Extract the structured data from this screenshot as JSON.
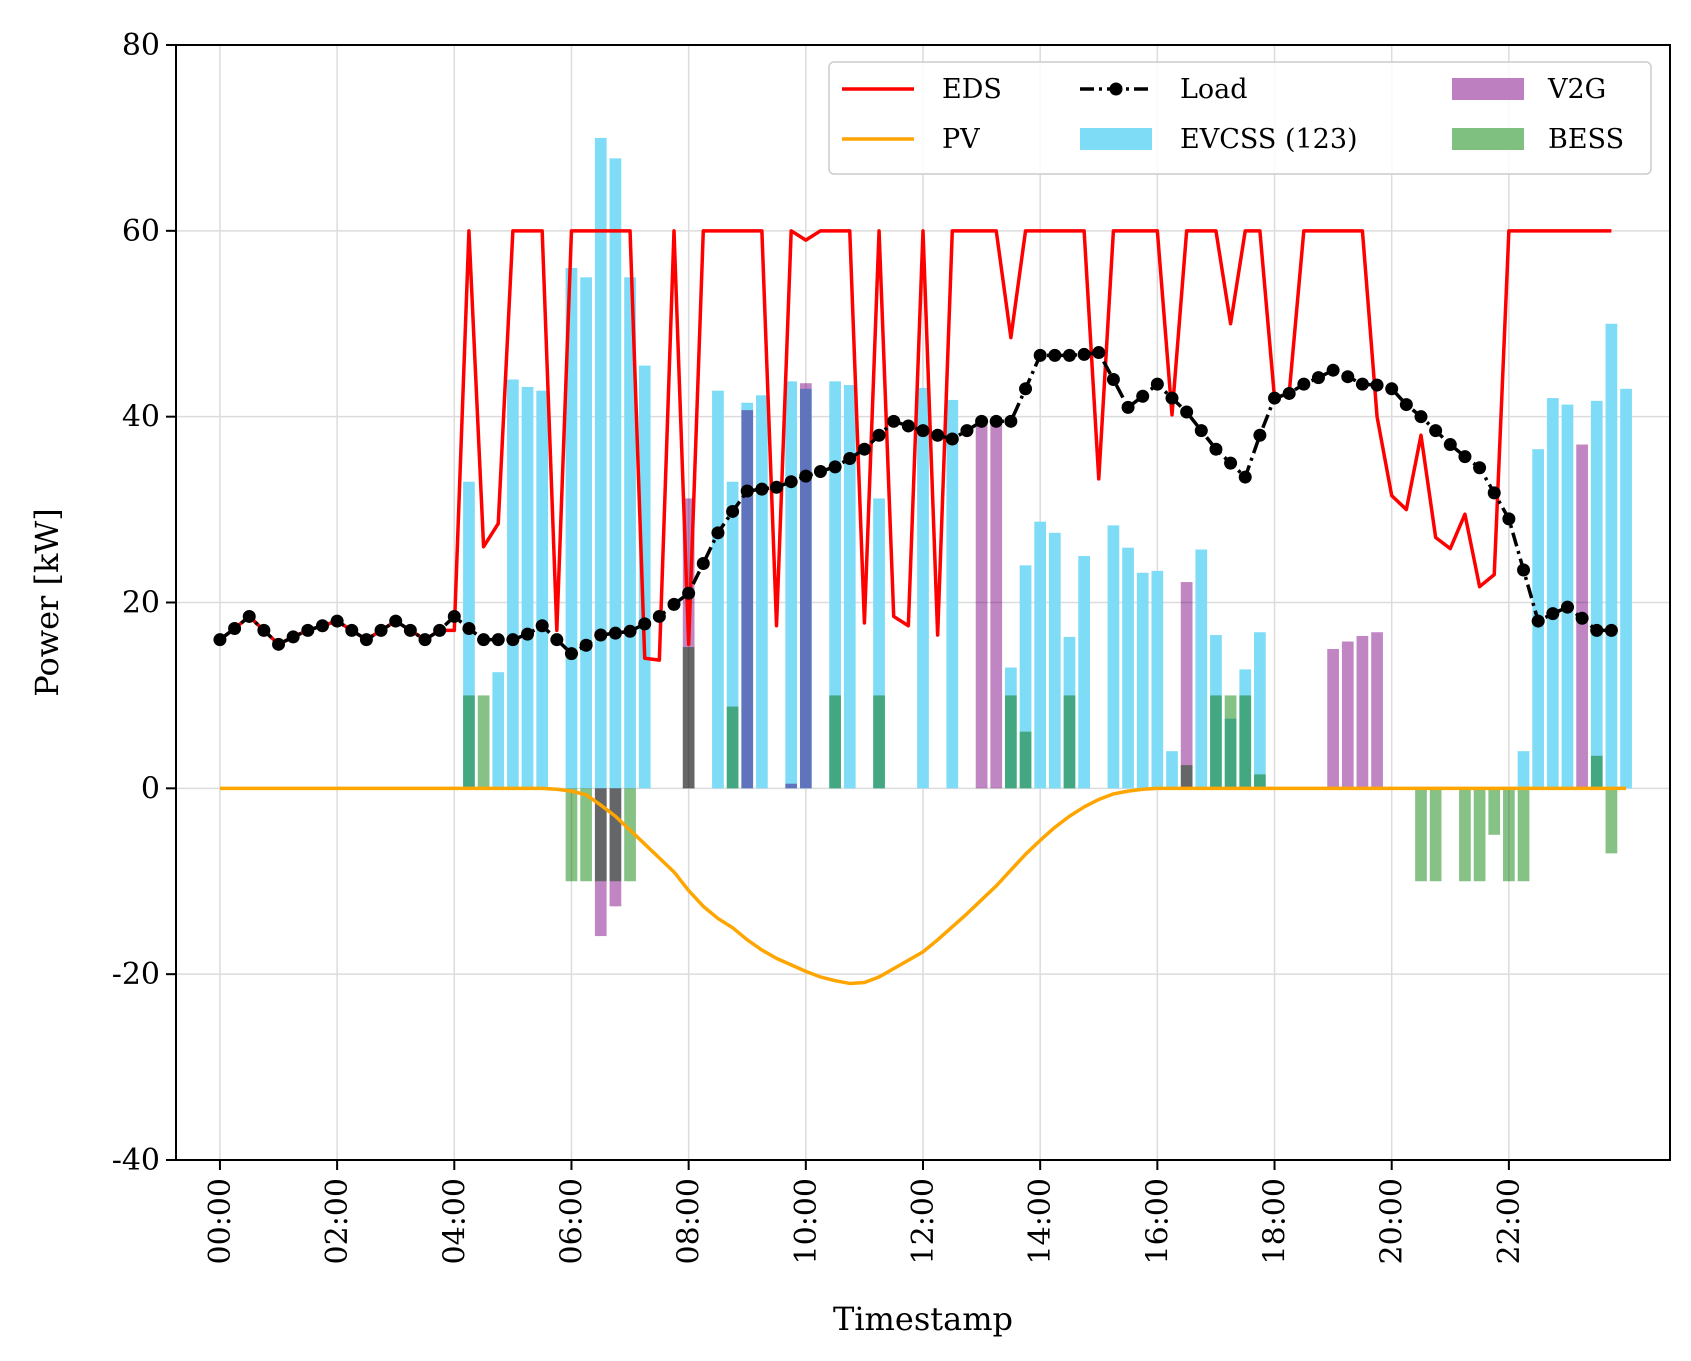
{
  "chart_data": {
    "type": "bar",
    "xlabel": "Timestamp",
    "ylabel": "Power [kW]",
    "ylim": [
      -40,
      80
    ],
    "xlim_hours": [
      -0.75,
      24.75
    ],
    "grid": true,
    "legend_placement": "top-right",
    "y_ticks": [
      "80",
      "60",
      "40",
      "20",
      "0",
      "-20",
      "-40"
    ],
    "y_tick_values": [
      80,
      60,
      40,
      20,
      0,
      -20,
      -40
    ],
    "x_ticks": [
      "00:00",
      "02:00",
      "04:00",
      "06:00",
      "08:00",
      "10:00",
      "12:00",
      "14:00",
      "16:00",
      "18:00",
      "20:00",
      "22:00"
    ],
    "x_tick_hours": [
      0,
      2,
      4,
      6,
      8,
      10,
      12,
      14,
      16,
      18,
      20,
      22
    ],
    "step_hours": 0.25,
    "colors": {
      "EDS": "#ff0000",
      "PV": "#ffa500",
      "Load": "#000000",
      "EVCSS": "#7fdcf7",
      "V2G": "#bd7fc0",
      "BESS": "#7fbf7f"
    },
    "legend": [
      {
        "label": "EDS",
        "kind": "line",
        "key": "EDS"
      },
      {
        "label": "PV",
        "kind": "line",
        "key": "PV"
      },
      {
        "label": "Load",
        "kind": "line-marker",
        "key": "Load"
      },
      {
        "label": "EVCSS (123)",
        "kind": "patch",
        "key": "EVCSS"
      },
      {
        "label": "V2G",
        "kind": "patch",
        "key": "V2G"
      },
      {
        "label": "BESS",
        "kind": "patch",
        "key": "BESS"
      }
    ],
    "series": [
      {
        "name": "EDS",
        "type": "line",
        "values": [
          16,
          17.2,
          18.5,
          17,
          15.5,
          16.3,
          17,
          17.5,
          18,
          17,
          16,
          17,
          18,
          17,
          16,
          17,
          17,
          60,
          26,
          28.5,
          60,
          60,
          60,
          17,
          60,
          60,
          60,
          60,
          60,
          14,
          13.8,
          60,
          15.5,
          60,
          60,
          60,
          60,
          60,
          17.5,
          60,
          59,
          60,
          60,
          60,
          17.8,
          60,
          18.5,
          17.5,
          60,
          16.5,
          60,
          60,
          60,
          60,
          48.5,
          60,
          60,
          60,
          60,
          60,
          33.3,
          60,
          60,
          60,
          60,
          40.2,
          60,
          60,
          60,
          50,
          60,
          60,
          42,
          42.5,
          60,
          60,
          60,
          60,
          60,
          40,
          31.5,
          30,
          38,
          27,
          25.8,
          29.5,
          21.7,
          23,
          60,
          60,
          60,
          60,
          60,
          60,
          60,
          60
        ]
      },
      {
        "name": "PV",
        "type": "line",
        "values": [
          0,
          0,
          0,
          0,
          0,
          0,
          0,
          0,
          0,
          0,
          0,
          0,
          0,
          0,
          0,
          0,
          0,
          0,
          0,
          0,
          0,
          0,
          0,
          -0.1,
          -0.3,
          -0.7,
          -1.8,
          -3,
          -4.5,
          -6,
          -7.5,
          -9,
          -11,
          -12.7,
          -14,
          -15,
          -16.3,
          -17.4,
          -18.3,
          -19,
          -19.7,
          -20.3,
          -20.7,
          -21,
          -20.9,
          -20.3,
          -19.4,
          -18.5,
          -17.6,
          -16.3,
          -14.9,
          -13.5,
          -12,
          -10.5,
          -8.8,
          -7.1,
          -5.6,
          -4.2,
          -3,
          -2,
          -1.2,
          -0.6,
          -0.3,
          -0.1,
          0,
          0,
          0,
          0,
          0,
          0,
          0,
          0,
          0,
          0,
          0,
          0,
          0,
          0,
          0,
          0,
          0,
          0,
          0,
          0,
          0,
          0,
          0,
          0,
          0,
          0,
          0,
          0,
          0,
          0,
          0,
          0,
          0
        ]
      },
      {
        "name": "Load",
        "type": "line-marker",
        "values": [
          16,
          17.2,
          18.5,
          17,
          15.5,
          16.3,
          17,
          17.5,
          18,
          17,
          16,
          17,
          18,
          17,
          16,
          17,
          18.5,
          17.2,
          16,
          16,
          16,
          16.6,
          17.5,
          16,
          14.5,
          15.4,
          16.5,
          16.7,
          16.9,
          17.7,
          18.5,
          19.8,
          21,
          24.2,
          27.5,
          29.8,
          32,
          32.2,
          32.4,
          33,
          33.6,
          34.1,
          34.6,
          35.5,
          36.5,
          38,
          39.5,
          39,
          38.5,
          38,
          37.6,
          38.5,
          39.5,
          39.5,
          39.5,
          43,
          46.6,
          46.6,
          46.6,
          46.7,
          46.9,
          44,
          41,
          42.2,
          43.5,
          42,
          40.5,
          38.5,
          36.5,
          35,
          33.5,
          38,
          42,
          42.5,
          43.5,
          44.2,
          45,
          44.3,
          43.5,
          43.4,
          43,
          41.3,
          40,
          38.5,
          37,
          35.7,
          34.5,
          31.8,
          29,
          23.5,
          18,
          18.8,
          19.5,
          18.3,
          17,
          17
        ]
      },
      {
        "name": "EVCSS (123)",
        "type": "bar",
        "values": [
          0,
          0,
          0,
          0,
          0,
          0,
          0,
          0,
          0,
          0,
          0,
          0,
          0,
          0,
          0,
          0,
          0,
          33,
          0,
          12.5,
          44,
          43.2,
          42.8,
          0,
          56,
          55,
          70,
          67.8,
          55,
          45.5,
          0,
          0,
          0,
          0,
          42.8,
          33,
          41.5,
          42.3,
          0,
          43.8,
          43,
          0,
          43.8,
          43.4,
          0,
          31.2,
          0,
          0,
          43.1,
          0,
          41.8,
          0,
          0,
          0,
          13,
          24,
          28.7,
          27.5,
          16.3,
          25,
          0,
          28.3,
          25.9,
          23.2,
          23.4,
          4,
          0,
          25.7,
          16.5,
          7.5,
          12.8,
          16.8,
          0,
          0,
          0,
          0,
          0,
          0,
          0,
          0,
          0,
          0,
          0,
          0,
          0,
          0,
          0,
          0,
          0,
          4,
          36.5,
          42,
          41.3,
          0,
          41.7,
          50,
          43
        ]
      },
      {
        "name": "V2G",
        "type": "bar",
        "values": [
          0,
          0,
          0,
          0,
          0,
          0,
          0,
          0,
          0,
          0,
          0,
          0,
          0,
          0,
          0,
          0,
          0,
          0,
          0,
          0,
          0,
          0,
          0,
          0,
          0,
          0,
          -15.9,
          -12.7,
          0,
          0,
          0,
          0,
          31.2,
          0,
          0,
          0,
          40.7,
          0,
          0,
          0.5,
          43.6,
          0,
          0,
          0,
          0,
          0,
          0,
          0,
          0,
          0,
          0,
          0,
          39.3,
          39.4,
          0,
          0,
          0,
          0,
          0,
          0,
          0,
          0,
          0,
          0,
          0,
          0,
          22.2,
          0,
          0,
          0,
          0,
          0,
          0,
          0,
          0,
          0,
          15,
          15.8,
          16.4,
          16.8,
          0,
          0,
          0,
          0,
          0,
          0,
          0,
          0,
          0,
          0,
          0,
          0,
          0,
          37,
          0,
          0,
          0
        ]
      },
      {
        "name": "BESS",
        "type": "bar",
        "values": [
          0,
          0,
          0,
          0,
          0,
          0,
          0,
          0,
          0,
          0,
          0,
          0,
          0,
          0,
          0,
          0,
          0,
          10,
          10,
          0,
          0,
          0,
          0,
          0,
          -10,
          -10,
          -10,
          -10,
          -10,
          0,
          0,
          0,
          15.2,
          0,
          0,
          8.8,
          0,
          0,
          0,
          0,
          0,
          0,
          10,
          0,
          0,
          10,
          0,
          0,
          0,
          0,
          0,
          0,
          0,
          0,
          10,
          6.1,
          0,
          0,
          10,
          0,
          0,
          0,
          0,
          0,
          0,
          0,
          2.5,
          0,
          10,
          10,
          10,
          1.5,
          0,
          0,
          0,
          0,
          0,
          0,
          0,
          0,
          0,
          0,
          -10,
          -10,
          0,
          -10,
          -10,
          -5,
          -10,
          -10,
          0,
          0,
          0,
          0,
          3.5,
          -7,
          0
        ]
      }
    ]
  }
}
